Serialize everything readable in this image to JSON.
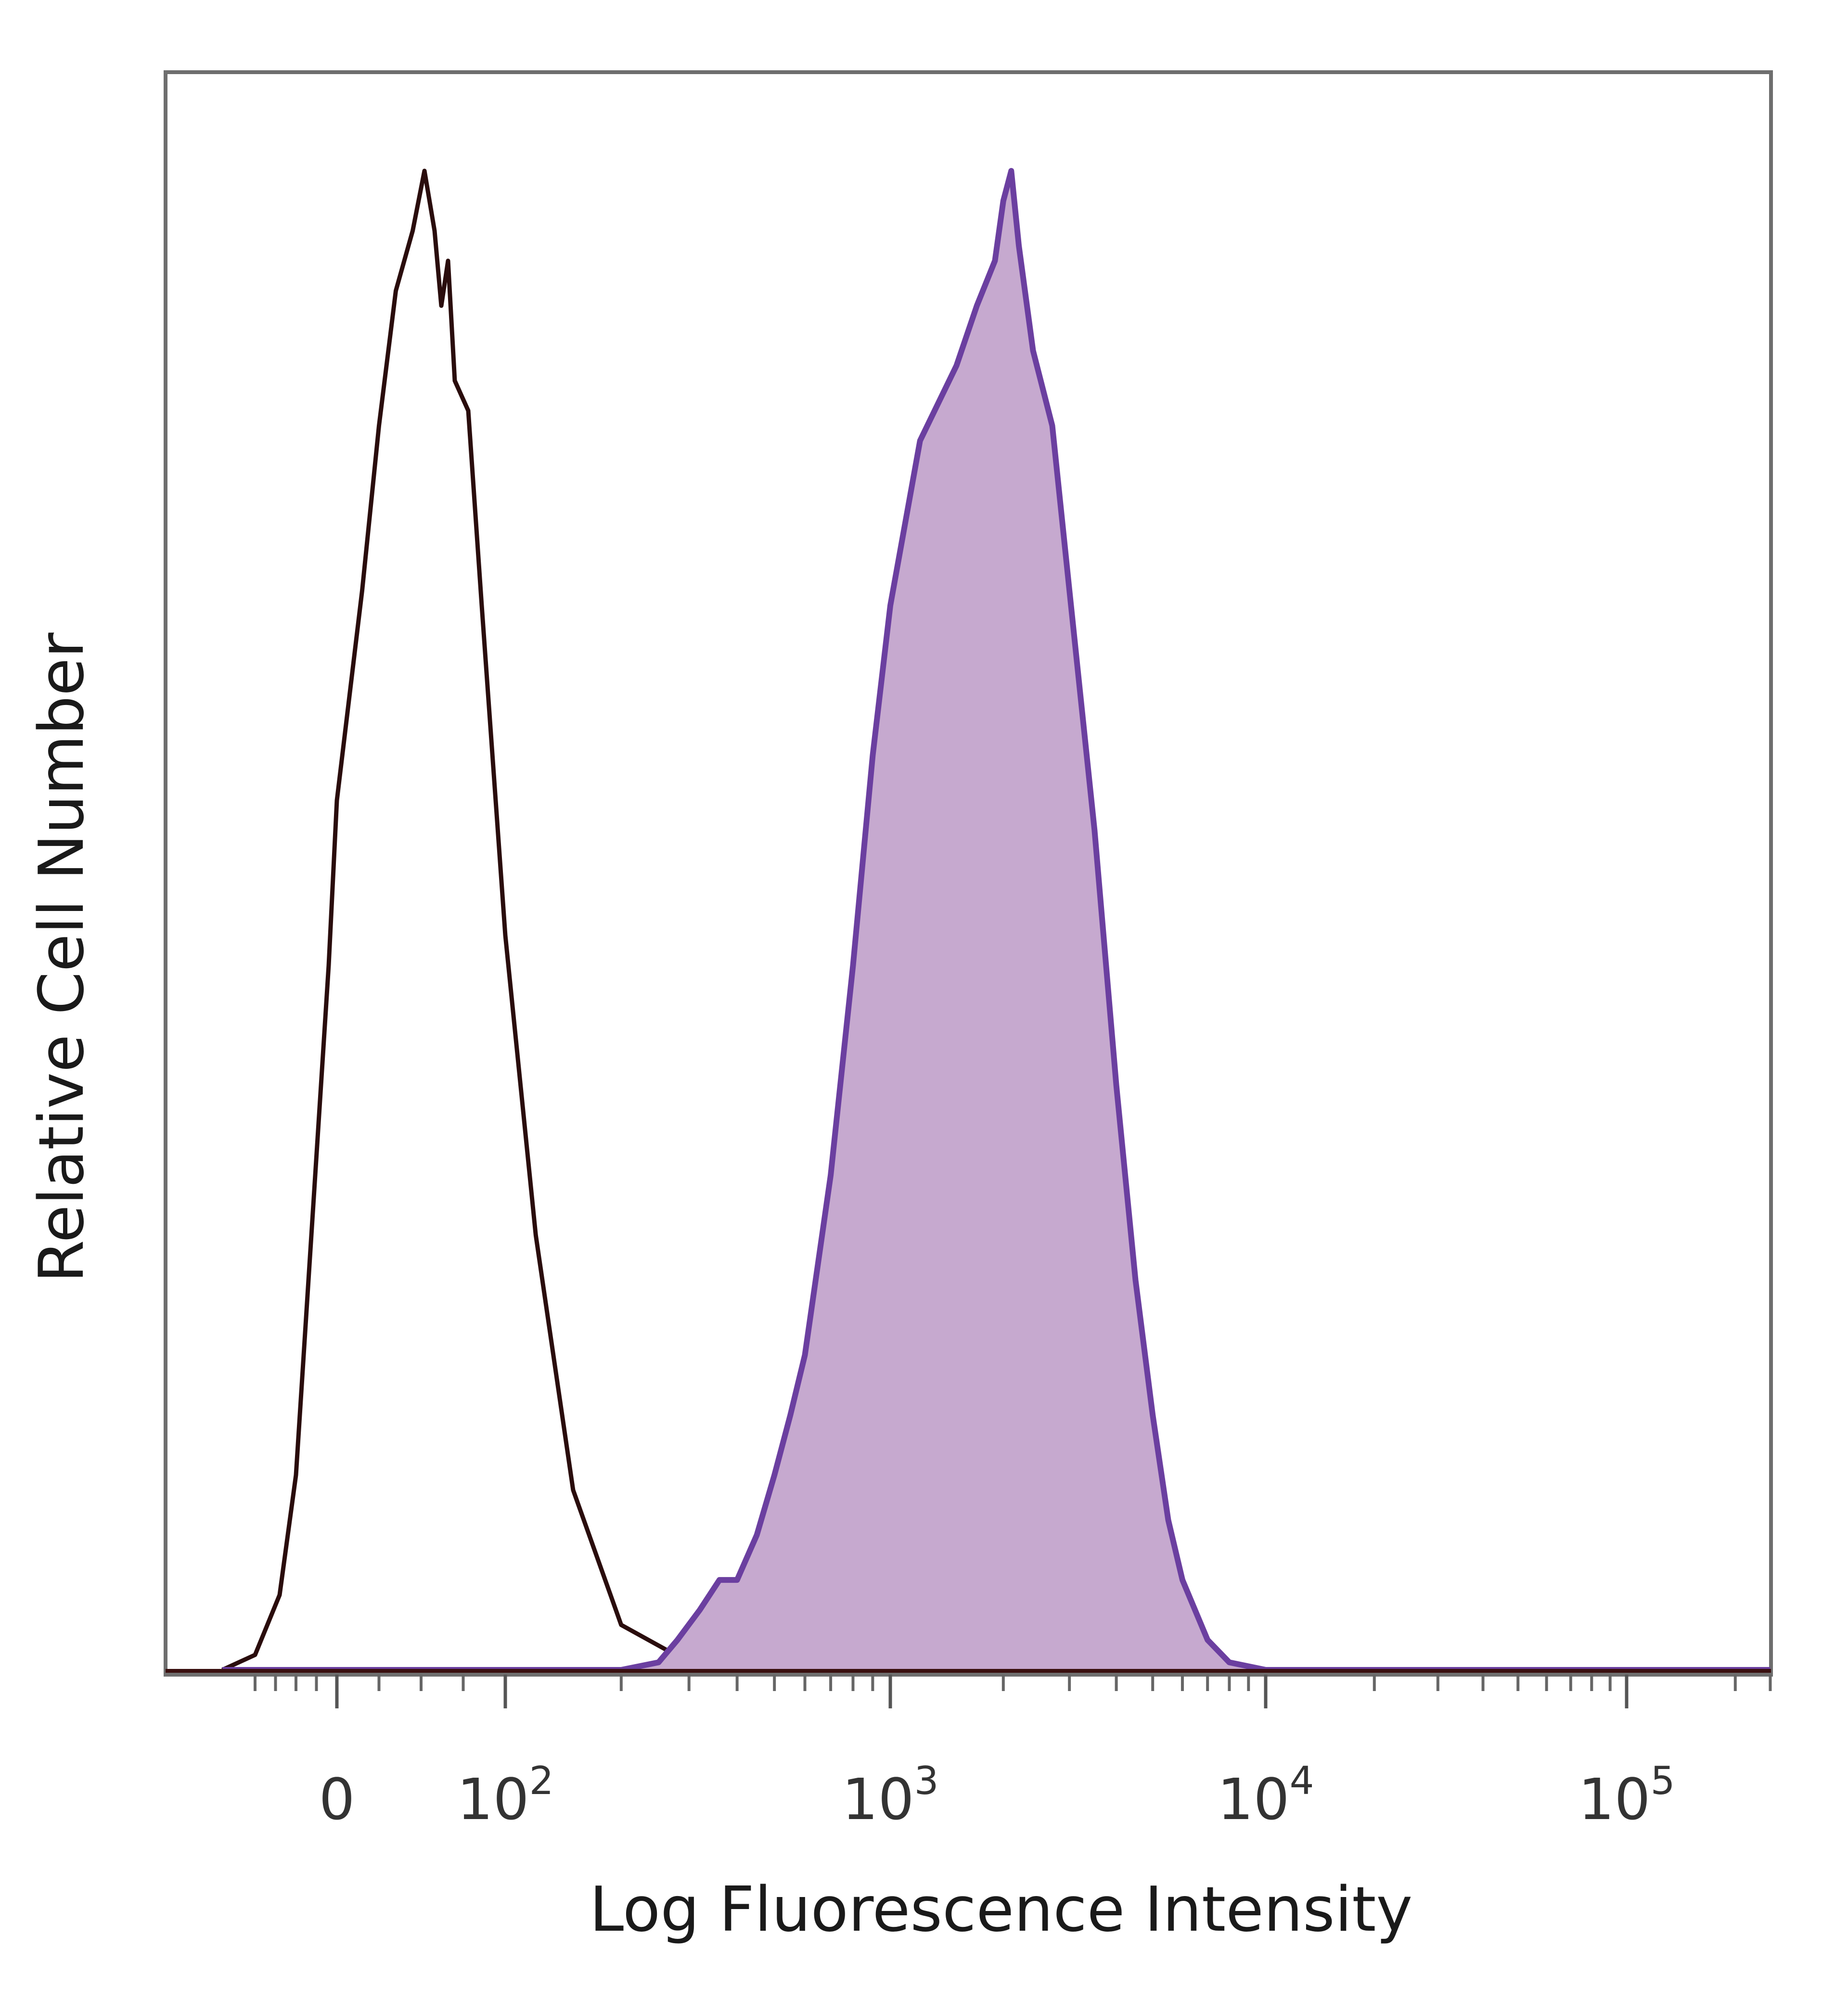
{
  "chart_data": {
    "type": "area",
    "title": "",
    "xlabel": "Log Fluorescence Intensity",
    "ylabel": "Relative Cell Number",
    "x_scale": "biexponential",
    "xlim": [
      -150,
      250000
    ],
    "ylim": [
      0,
      100
    ],
    "grid": false,
    "legend": "none",
    "x_ticks": [
      {
        "value": 0,
        "base": "0",
        "exp": ""
      },
      {
        "value": 100,
        "base": "10",
        "exp": "2"
      },
      {
        "value": 1000,
        "base": "10",
        "exp": "3"
      },
      {
        "value": 10000,
        "base": "10",
        "exp": "4"
      },
      {
        "value": 100000,
        "base": "10",
        "exp": "5"
      }
    ],
    "series": [
      {
        "style": "outline",
        "color": "#2a0d0d",
        "x": [
          -140,
          -100,
          -70,
          -50,
          -30,
          -10,
          0,
          15,
          25,
          35,
          45,
          52,
          58,
          62,
          66,
          70,
          78,
          86,
          100,
          120,
          150,
          200,
          300,
          400,
          1000,
          10000,
          100000,
          250000
        ],
        "y": [
          0,
          1,
          5,
          13,
          30,
          47,
          58,
          72,
          83,
          92,
          96,
          100,
          96,
          91,
          94,
          86,
          84,
          71,
          49,
          29,
          12,
          3,
          0.5,
          0.2,
          0,
          0,
          0,
          0
        ]
      },
      {
        "style": "filled",
        "color": "#6b3fa0",
        "fill": "#c6a9cf",
        "x": [
          -140,
          200,
          250,
          280,
          320,
          360,
          400,
          450,
          500,
          550,
          600,
          700,
          800,
          900,
          1000,
          1200,
          1500,
          1700,
          1900,
          2000,
          2100,
          2200,
          2400,
          2700,
          3000,
          3500,
          4000,
          4500,
          5000,
          5500,
          6000,
          7000,
          8000,
          10000,
          100000,
          250000
        ],
        "y": [
          0,
          0,
          0.5,
          2,
          4,
          6,
          6,
          9,
          13,
          17,
          21,
          33,
          47,
          61,
          71,
          82,
          87,
          91,
          94,
          98,
          100,
          95,
          88,
          83,
          72,
          56,
          39,
          26,
          17,
          10,
          6,
          2,
          0.5,
          0,
          0,
          0
        ]
      }
    ]
  }
}
